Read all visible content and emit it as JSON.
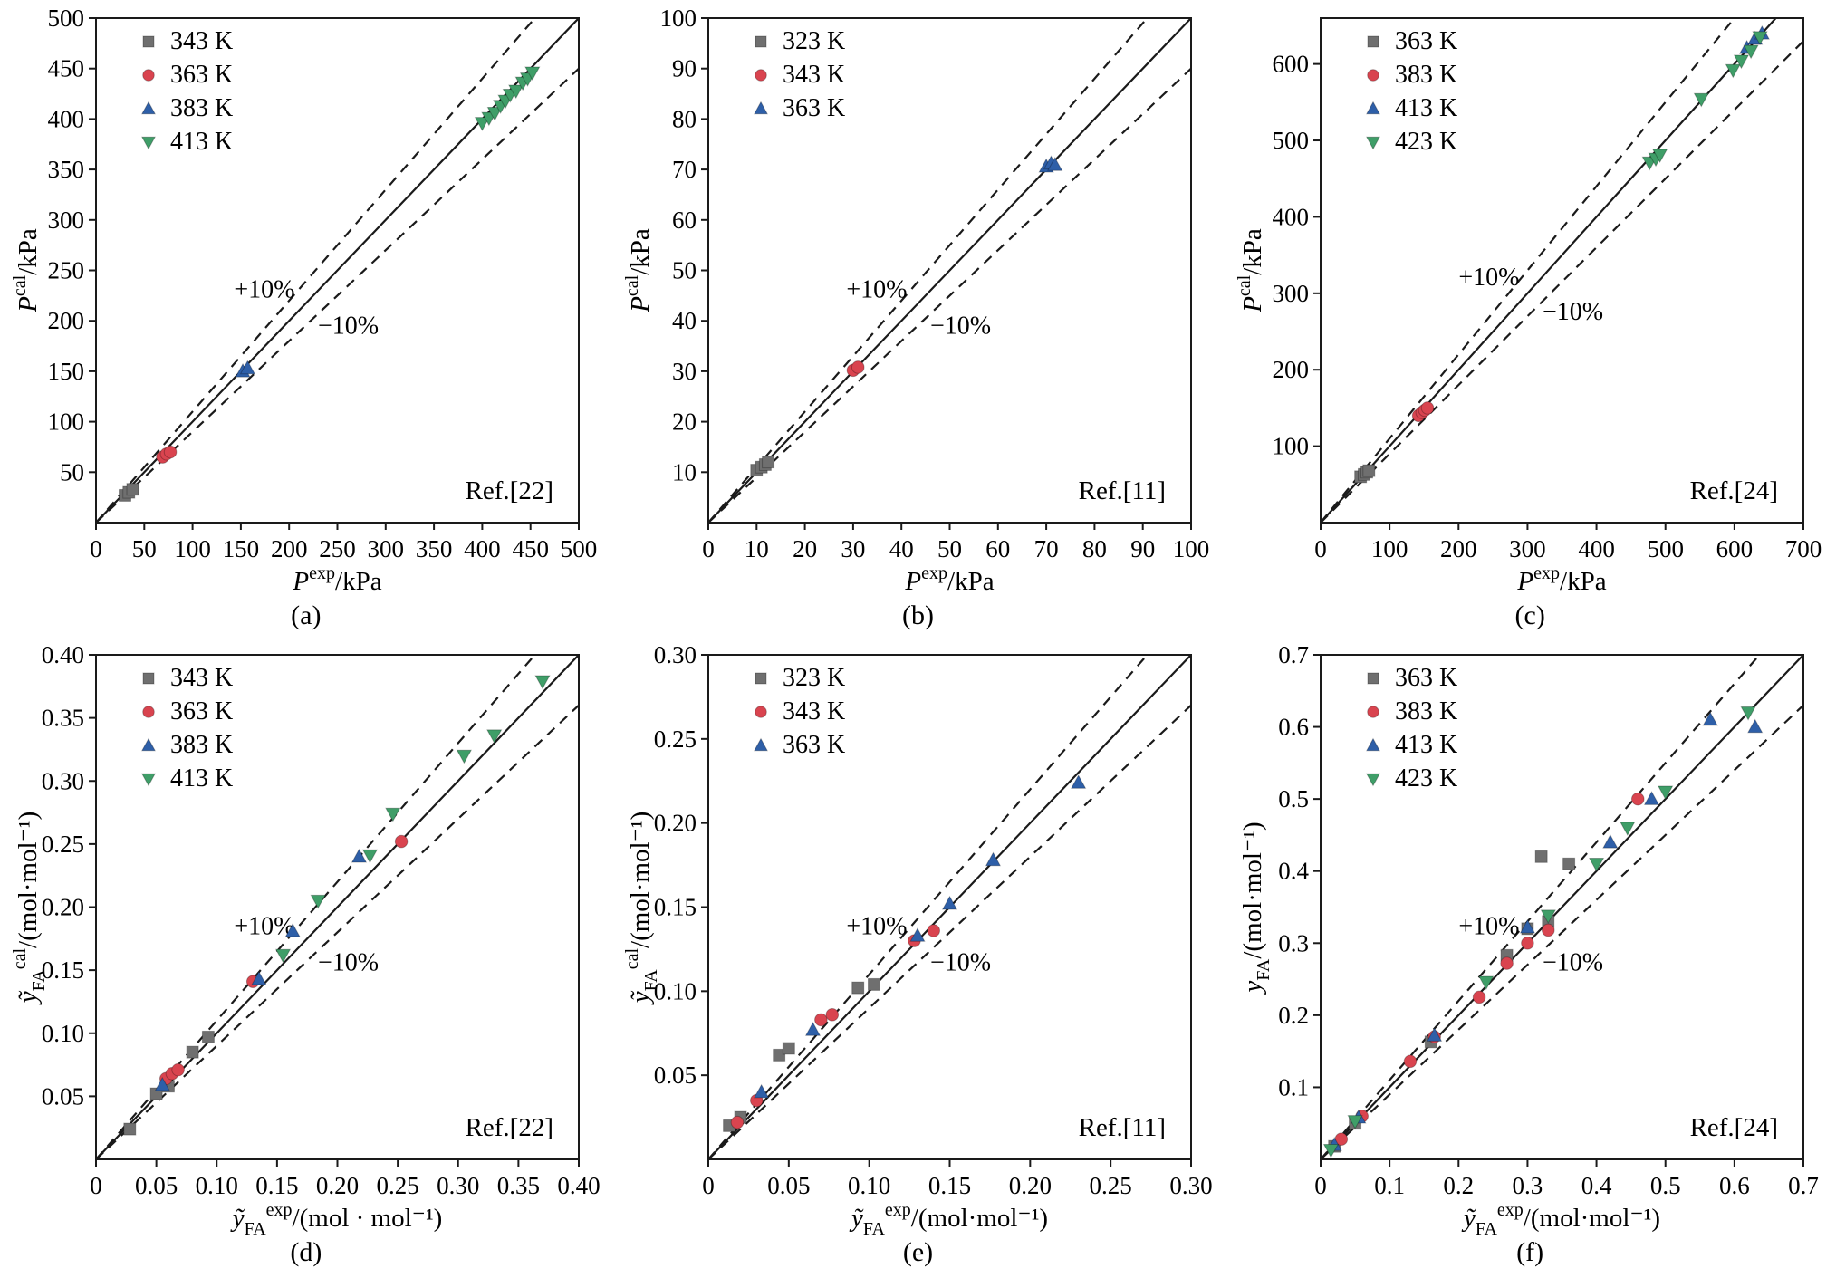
{
  "page": {
    "background": "#ffffff"
  },
  "band": {
    "plus_label": "+10%",
    "minus_label": "−10%",
    "percent": 10
  },
  "chart_data": [
    {
      "id": "a",
      "type": "scatter",
      "caption": "(a)",
      "ref": "Ref.[22]",
      "xlim": [
        0,
        500
      ],
      "ylim": [
        0,
        500
      ],
      "xtick_vals": [
        0,
        50,
        100,
        150,
        200,
        250,
        300,
        350,
        400,
        450,
        500
      ],
      "xtick_labels": [
        "0",
        "50",
        "100",
        "150",
        "200",
        "250",
        "300",
        "350",
        "400",
        "450",
        "500"
      ],
      "ytick_vals": [
        50,
        100,
        150,
        200,
        250,
        300,
        350,
        400,
        450,
        500
      ],
      "ytick_labels": [
        "50",
        "100",
        "150",
        "200",
        "250",
        "300",
        "350",
        "400",
        "450",
        "500"
      ],
      "xlabel_parts": [
        {
          "t": "P",
          "s": "i"
        },
        {
          "t": "exp",
          "s": "sup"
        },
        {
          "t": "/kPa",
          "s": ""
        }
      ],
      "ylabel_parts": [
        {
          "t": "P",
          "s": "i"
        },
        {
          "t": "cal",
          "s": "sup"
        },
        {
          "t": "/kPa",
          "s": ""
        }
      ],
      "plus_label": "+10%",
      "minus_label": "−10%",
      "grid": false,
      "legend_position": "top-left",
      "series": [
        {
          "name": "343 K",
          "marker": "square",
          "color": "#6f6f6f",
          "points": [
            [
              30,
              27
            ],
            [
              34,
              30
            ],
            [
              38,
              33
            ]
          ]
        },
        {
          "name": "363 K",
          "marker": "circle",
          "color": "#d9444f",
          "points": [
            [
              69,
              65
            ],
            [
              73,
              68
            ],
            [
              77,
              70
            ]
          ]
        },
        {
          "name": "383 K",
          "marker": "triangle-up",
          "color": "#2e5fa8",
          "points": [
            [
              152,
              150
            ],
            [
              157,
              153
            ]
          ]
        },
        {
          "name": "413 K",
          "marker": "triangle-down",
          "color": "#3f9e68",
          "points": [
            [
              400,
              396
            ],
            [
              407,
              401
            ],
            [
              413,
              406
            ],
            [
              419,
              413
            ],
            [
              424,
              418
            ],
            [
              429,
              424
            ],
            [
              435,
              428
            ],
            [
              442,
              436
            ],
            [
              447,
              440
            ],
            [
              452,
              446
            ]
          ]
        }
      ]
    },
    {
      "id": "b",
      "type": "scatter",
      "caption": "(b)",
      "ref": "Ref.[11]",
      "xlim": [
        0,
        100
      ],
      "ylim": [
        0,
        100
      ],
      "xtick_vals": [
        0,
        10,
        20,
        30,
        40,
        50,
        60,
        70,
        80,
        90,
        100
      ],
      "xtick_labels": [
        "0",
        "10",
        "20",
        "30",
        "40",
        "50",
        "60",
        "70",
        "80",
        "90",
        "100"
      ],
      "ytick_vals": [
        10,
        20,
        30,
        40,
        50,
        60,
        70,
        80,
        90,
        100
      ],
      "ytick_labels": [
        "10",
        "20",
        "30",
        "40",
        "50",
        "60",
        "70",
        "80",
        "90",
        "100"
      ],
      "xlabel_parts": [
        {
          "t": "P",
          "s": "i"
        },
        {
          "t": "exp",
          "s": "sup"
        },
        {
          "t": "/kPa",
          "s": ""
        }
      ],
      "ylabel_parts": [
        {
          "t": "P",
          "s": "i"
        },
        {
          "t": "cal",
          "s": "sup"
        },
        {
          "t": "/kPa",
          "s": ""
        }
      ],
      "plus_label": "+10%",
      "minus_label": "−10%",
      "grid": false,
      "legend_position": "top-left",
      "series": [
        {
          "name": "323 K",
          "marker": "square",
          "color": "#6f6f6f",
          "points": [
            [
              10,
              10.4
            ],
            [
              11,
              11
            ],
            [
              11.8,
              11.5
            ],
            [
              12.4,
              12
            ]
          ]
        },
        {
          "name": "343 K",
          "marker": "circle",
          "color": "#d9444f",
          "points": [
            [
              30,
              30.2
            ],
            [
              31,
              30.8
            ]
          ]
        },
        {
          "name": "363 K",
          "marker": "triangle-up",
          "color": "#2e5fa8",
          "points": [
            [
              70,
              70.6
            ],
            [
              71,
              71.2
            ],
            [
              71.8,
              70.9
            ]
          ]
        }
      ]
    },
    {
      "id": "c",
      "type": "scatter",
      "caption": "(c)",
      "ref": "Ref.[24]",
      "xlim": [
        0,
        700
      ],
      "ylim": [
        0,
        660
      ],
      "xtick_vals": [
        0,
        100,
        200,
        300,
        400,
        500,
        600,
        700
      ],
      "xtick_labels": [
        "0",
        "100",
        "200",
        "300",
        "400",
        "500",
        "600",
        "700"
      ],
      "ytick_vals": [
        100,
        200,
        300,
        400,
        500,
        600
      ],
      "ytick_labels": [
        "100",
        "200",
        "300",
        "400",
        "500",
        "600"
      ],
      "xlabel_parts": [
        {
          "t": "P",
          "s": "i"
        },
        {
          "t": "exp",
          "s": "sup"
        },
        {
          "t": "/kPa",
          "s": ""
        }
      ],
      "ylabel_parts": [
        {
          "t": "P",
          "s": "i"
        },
        {
          "t": "cal",
          "s": "sup"
        },
        {
          "t": "/kPa",
          "s": ""
        }
      ],
      "plus_label": "+10%",
      "minus_label": "−10%",
      "grid": false,
      "legend_position": "top-left",
      "series": [
        {
          "name": "363 K",
          "marker": "square",
          "color": "#6f6f6f",
          "points": [
            [
              58,
              60
            ],
            [
              63,
              63
            ],
            [
              67,
              66
            ],
            [
              70,
              68
            ]
          ]
        },
        {
          "name": "383 K",
          "marker": "circle",
          "color": "#d9444f",
          "points": [
            [
              142,
              140
            ],
            [
              147,
              144
            ],
            [
              151,
              147
            ],
            [
              155,
              150
            ]
          ]
        },
        {
          "name": "413 K",
          "marker": "triangle-up",
          "color": "#2e5fa8",
          "points": [
            [
              618,
              621
            ],
            [
              630,
              633
            ],
            [
              640,
              640
            ]
          ]
        },
        {
          "name": "423 K",
          "marker": "triangle-down",
          "color": "#3f9e68",
          "points": [
            [
              477,
              471
            ],
            [
              486,
              476
            ],
            [
              492,
              481
            ],
            [
              552,
              554
            ],
            [
              598,
              592
            ],
            [
              610,
              604
            ],
            [
              624,
              617
            ],
            [
              637,
              635
            ]
          ]
        }
      ]
    },
    {
      "id": "d",
      "type": "scatter",
      "caption": "(d)",
      "ref": "Ref.[22]",
      "xlim": [
        0,
        0.4
      ],
      "ylim": [
        0,
        0.4
      ],
      "xtick_vals": [
        0,
        0.05,
        0.1,
        0.15,
        0.2,
        0.25,
        0.3,
        0.35,
        0.4
      ],
      "xtick_labels": [
        "0",
        "0.05",
        "0.10",
        "0.15",
        "0.20",
        "0.25",
        "0.30",
        "0.35",
        "0.40"
      ],
      "ytick_vals": [
        0.05,
        0.1,
        0.15,
        0.2,
        0.25,
        0.3,
        0.35,
        0.4
      ],
      "ytick_labels": [
        "0.05",
        "0.10",
        "0.15",
        "0.20",
        "0.25",
        "0.30",
        "0.35",
        "0.40"
      ],
      "xlabel_parts": [
        {
          "t": "ỹ",
          "s": "i"
        },
        {
          "t": "FA",
          "s": "sub"
        },
        {
          "t": "exp",
          "s": "sup"
        },
        {
          "t": "/(mol · mol⁻¹)",
          "s": ""
        }
      ],
      "ylabel_parts": [
        {
          "t": "ỹ",
          "s": "i"
        },
        {
          "t": "FA",
          "s": "sub"
        },
        {
          "t": "cal",
          "s": "sup"
        },
        {
          "t": "/(mol·mol⁻¹)",
          "s": ""
        }
      ],
      "plus_label": "+10%",
      "minus_label": "−10%",
      "grid": false,
      "legend_position": "top-left",
      "series": [
        {
          "name": "343 K",
          "marker": "square",
          "color": "#6f6f6f",
          "points": [
            [
              0.028,
              0.024
            ],
            [
              0.05,
              0.052
            ],
            [
              0.06,
              0.058
            ],
            [
              0.08,
              0.085
            ],
            [
              0.093,
              0.097
            ]
          ]
        },
        {
          "name": "363 K",
          "marker": "circle",
          "color": "#d9444f",
          "points": [
            [
              0.058,
              0.064
            ],
            [
              0.063,
              0.068
            ],
            [
              0.068,
              0.071
            ],
            [
              0.13,
              0.141
            ],
            [
              0.253,
              0.252
            ]
          ]
        },
        {
          "name": "383 K",
          "marker": "triangle-up",
          "color": "#2e5fa8",
          "points": [
            [
              0.055,
              0.059
            ],
            [
              0.135,
              0.143
            ],
            [
              0.163,
              0.181
            ],
            [
              0.218,
              0.24
            ]
          ]
        },
        {
          "name": "413 K",
          "marker": "triangle-down",
          "color": "#3f9e68",
          "points": [
            [
              0.155,
              0.162
            ],
            [
              0.184,
              0.205
            ],
            [
              0.227,
              0.241
            ],
            [
              0.246,
              0.274
            ],
            [
              0.305,
              0.32
            ],
            [
              0.33,
              0.336
            ],
            [
              0.37,
              0.379
            ]
          ]
        }
      ]
    },
    {
      "id": "e",
      "type": "scatter",
      "caption": "(e)",
      "ref": "Ref.[11]",
      "xlim": [
        0,
        0.3
      ],
      "ylim": [
        0,
        0.3
      ],
      "xtick_vals": [
        0,
        0.05,
        0.1,
        0.15,
        0.2,
        0.25,
        0.3
      ],
      "xtick_labels": [
        "0",
        "0.05",
        "0.10",
        "0.15",
        "0.20",
        "0.25",
        "0.30"
      ],
      "ytick_vals": [
        0.05,
        0.1,
        0.15,
        0.2,
        0.25,
        0.3
      ],
      "ytick_labels": [
        "0.05",
        "0.10",
        "0.15",
        "0.20",
        "0.25",
        "0.30"
      ],
      "xlabel_parts": [
        {
          "t": "ỹ",
          "s": "i"
        },
        {
          "t": "FA",
          "s": "sub"
        },
        {
          "t": "exp",
          "s": "sup"
        },
        {
          "t": "/(mol·mol⁻¹)",
          "s": ""
        }
      ],
      "ylabel_parts": [
        {
          "t": "ỹ",
          "s": "i"
        },
        {
          "t": "FA",
          "s": "sub"
        },
        {
          "t": "cal",
          "s": "sup"
        },
        {
          "t": "/(mol·mol⁻¹)",
          "s": ""
        }
      ],
      "plus_label": "+10%",
      "minus_label": "−10%",
      "grid": false,
      "legend_position": "top-left",
      "series": [
        {
          "name": "323 K",
          "marker": "square",
          "color": "#6f6f6f",
          "points": [
            [
              0.013,
              0.02
            ],
            [
              0.02,
              0.025
            ],
            [
              0.044,
              0.062
            ],
            [
              0.05,
              0.066
            ],
            [
              0.093,
              0.102
            ],
            [
              0.103,
              0.104
            ]
          ]
        },
        {
          "name": "343 K",
          "marker": "circle",
          "color": "#d9444f",
          "points": [
            [
              0.018,
              0.022
            ],
            [
              0.03,
              0.035
            ],
            [
              0.07,
              0.083
            ],
            [
              0.077,
              0.086
            ],
            [
              0.128,
              0.13
            ],
            [
              0.14,
              0.136
            ]
          ]
        },
        {
          "name": "363 K",
          "marker": "triangle-up",
          "color": "#2e5fa8",
          "points": [
            [
              0.033,
              0.04
            ],
            [
              0.065,
              0.077
            ],
            [
              0.13,
              0.133
            ],
            [
              0.15,
              0.152
            ],
            [
              0.177,
              0.178
            ],
            [
              0.23,
              0.224
            ]
          ]
        }
      ]
    },
    {
      "id": "f",
      "type": "scatter",
      "caption": "(f)",
      "ref": "Ref.[24]",
      "xlim": [
        0,
        0.7
      ],
      "ylim": [
        0,
        0.7
      ],
      "xtick_vals": [
        0,
        0.1,
        0.2,
        0.3,
        0.4,
        0.5,
        0.6,
        0.7
      ],
      "xtick_labels": [
        "0",
        "0.1",
        "0.2",
        "0.3",
        "0.4",
        "0.5",
        "0.6",
        "0.7"
      ],
      "ytick_vals": [
        0.1,
        0.2,
        0.3,
        0.4,
        0.5,
        0.6,
        0.7
      ],
      "ytick_labels": [
        "0.1",
        "0.2",
        "0.3",
        "0.4",
        "0.5",
        "0.6",
        "0.7"
      ],
      "xlabel_parts": [
        {
          "t": "ỹ",
          "s": "i"
        },
        {
          "t": "FA",
          "s": "sub"
        },
        {
          "t": "exp",
          "s": "sup"
        },
        {
          "t": "/(mol·mol⁻¹)",
          "s": ""
        }
      ],
      "ylabel_parts": [
        {
          "t": "y",
          "s": "i"
        },
        {
          "t": "FA",
          "s": "sub"
        },
        {
          "t": "/(mol·mol⁻¹)",
          "s": ""
        }
      ],
      "plus_label": "+10%",
      "minus_label": "−10%",
      "grid": false,
      "legend_position": "top-left",
      "series": [
        {
          "name": "363 K",
          "marker": "square",
          "color": "#6f6f6f",
          "points": [
            [
              0.02,
              0.018
            ],
            [
              0.05,
              0.05
            ],
            [
              0.16,
              0.163
            ],
            [
              0.27,
              0.283
            ],
            [
              0.3,
              0.32
            ],
            [
              0.32,
              0.42
            ],
            [
              0.36,
              0.41
            ],
            [
              0.33,
              0.33
            ]
          ]
        },
        {
          "name": "383 K",
          "marker": "circle",
          "color": "#d9444f",
          "points": [
            [
              0.03,
              0.028
            ],
            [
              0.06,
              0.06
            ],
            [
              0.13,
              0.136
            ],
            [
              0.165,
              0.17
            ],
            [
              0.23,
              0.225
            ],
            [
              0.27,
              0.272
            ],
            [
              0.3,
              0.3
            ],
            [
              0.33,
              0.318
            ],
            [
              0.46,
              0.5
            ]
          ]
        },
        {
          "name": "413 K",
          "marker": "triangle-up",
          "color": "#2e5fa8",
          "points": [
            [
              0.02,
              0.02
            ],
            [
              0.055,
              0.058
            ],
            [
              0.165,
              0.172
            ],
            [
              0.3,
              0.322
            ],
            [
              0.42,
              0.44
            ],
            [
              0.48,
              0.5
            ],
            [
              0.565,
              0.61
            ],
            [
              0.63,
              0.6
            ]
          ]
        },
        {
          "name": "423 K",
          "marker": "triangle-down",
          "color": "#3f9e68",
          "points": [
            [
              0.015,
              0.013
            ],
            [
              0.05,
              0.053
            ],
            [
              0.24,
              0.246
            ],
            [
              0.33,
              0.338
            ],
            [
              0.4,
              0.41
            ],
            [
              0.445,
              0.46
            ],
            [
              0.5,
              0.51
            ],
            [
              0.62,
              0.62
            ]
          ]
        }
      ]
    }
  ]
}
